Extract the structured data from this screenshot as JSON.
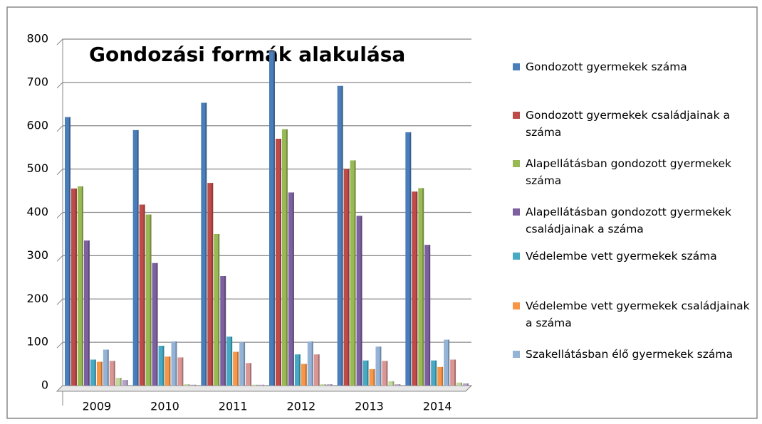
{
  "chart_data": {
    "type": "bar",
    "title": "Gondozási formák alakulása",
    "categories": [
      "2009",
      "2010",
      "2011",
      "2012",
      "2013",
      "2014"
    ],
    "series": [
      {
        "name": "Gondozott gyermekek száma",
        "color": "#4a7ebb",
        "values": [
          620,
          590,
          653,
          772,
          692,
          585
        ]
      },
      {
        "name": "Gondozott gyermekek családjainak a száma",
        "color": "#be4b48",
        "values": [
          455,
          418,
          468,
          570,
          500,
          448
        ]
      },
      {
        "name": "Alapellátásban gondozott gyermekek száma",
        "color": "#98b954",
        "values": [
          460,
          395,
          350,
          592,
          520,
          456
        ]
      },
      {
        "name": "Alapellátásban gondozott gyermekek családjainak a száma",
        "color": "#7d60a0",
        "values": [
          335,
          283,
          253,
          446,
          392,
          325
        ]
      },
      {
        "name": "Védelembe vett gyermekek száma",
        "color": "#46aac5",
        "values": [
          60,
          92,
          113,
          72,
          58,
          58
        ]
      },
      {
        "name": "Védelembe vett gyermekek családjainak a száma",
        "color": "#f79646",
        "values": [
          55,
          67,
          78,
          50,
          38,
          43
        ]
      },
      {
        "name": "Szakellátásban élő gyermekek száma",
        "color": "#95b3d7",
        "values": [
          83,
          102,
          100,
          102,
          90,
          106
        ]
      },
      {
        "color": "#d99694",
        "values": [
          57,
          65,
          52,
          72,
          57,
          60
        ]
      },
      {
        "color": "#c3d69b",
        "values": [
          18,
          3,
          2,
          3,
          10,
          7
        ]
      },
      {
        "color": "#b3a2c7",
        "values": [
          13,
          2,
          2,
          3,
          3,
          5
        ]
      }
    ],
    "ylim": [
      0,
      800
    ],
    "yticks": [
      0,
      100,
      200,
      300,
      400,
      500,
      600,
      700,
      800
    ],
    "grid": true
  }
}
